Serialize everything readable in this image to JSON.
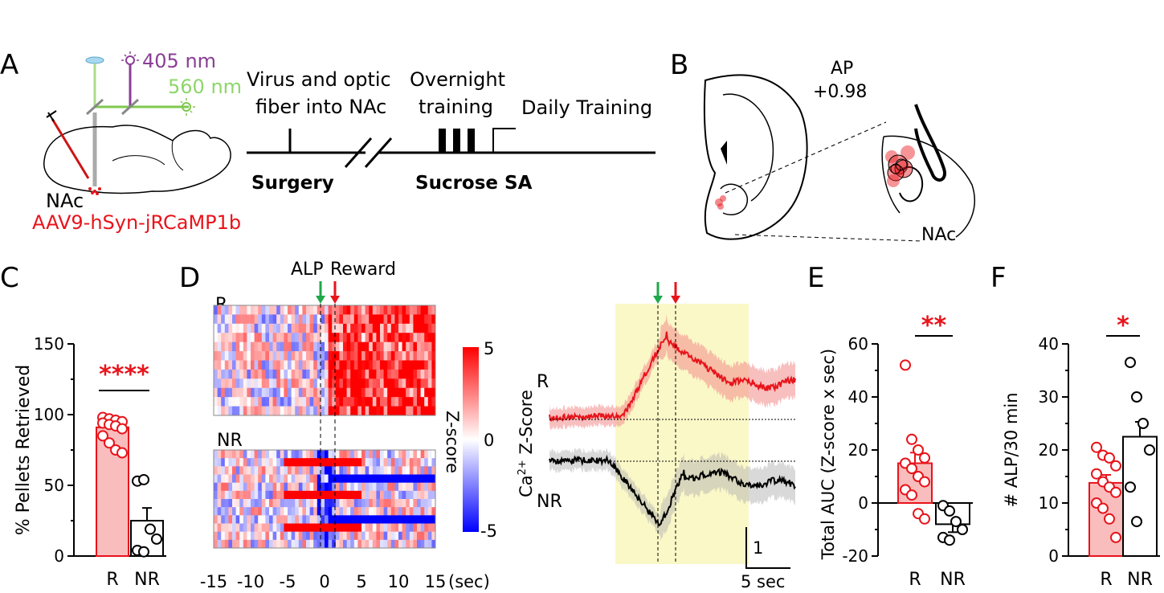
{
  "colors": {
    "red": "#e8141b",
    "green": "#1fa84a",
    "purple": "#8b3e96",
    "light_green": "#8dd66a",
    "pink_fill": "#f9bdbd",
    "yellow_band": "#fbf8c8"
  },
  "panel_labels": {
    "a": "A",
    "b": "B",
    "c": "C",
    "d": "D",
    "e": "E",
    "f": "F"
  },
  "panel_a": {
    "wavelength_1": "405 nm",
    "wavelength_2": "560 nm",
    "region": "NAc",
    "virus": "AAV9-hSyn-jRCaMP1b",
    "timeline": {
      "step1_line1": "Virus and optic",
      "step1_line2": "fiber into NAc",
      "step2_line1": "Overnight",
      "step2_line2": "training",
      "step3": "Daily Training",
      "surgery": "Surgery",
      "sucrose": "Sucrose SA"
    }
  },
  "panel_b": {
    "ap_label": "AP",
    "ap_value": "+0.98",
    "region": "NAc"
  },
  "chart_data": [
    {
      "id": "C",
      "type": "bar",
      "ylabel": "% Pellets Retrieved",
      "categories": [
        "R",
        "NR"
      ],
      "values": [
        91,
        25
      ],
      "sem": [
        3,
        9
      ],
      "ylim": [
        0,
        150
      ],
      "yticks": [
        "0",
        "50",
        "100",
        "150"
      ],
      "significance": "****",
      "points": {
        "R": [
          98,
          97,
          96,
          95,
          94,
          93,
          92,
          90,
          85,
          80,
          75,
          73
        ],
        "NR": [
          53,
          54,
          19,
          12,
          4,
          3
        ]
      }
    },
    {
      "id": "D-heatmap",
      "type": "heatmap",
      "group_labels": [
        "R",
        "NR"
      ],
      "event_labels": [
        "ALP",
        "Reward"
      ],
      "x": [
        -15,
        -10,
        -5,
        0,
        5,
        10,
        15
      ],
      "xticks": [
        "-15",
        "-10",
        "-5",
        "0",
        "5",
        "10",
        "15"
      ],
      "xunit": "(sec)",
      "colorbar_label": "Z-score",
      "colorbar_ticks": [
        "5",
        "0",
        "-5"
      ],
      "clim": [
        -5,
        5
      ]
    },
    {
      "id": "D-trace",
      "type": "line",
      "ylabel_prefix": "Ca",
      "ylabel_sup": "2+",
      "ylabel_suffix": " Z-Score",
      "series": [
        {
          "name": "R"
        },
        {
          "name": "NR"
        }
      ],
      "scale_y": "1",
      "scale_x": "5 sec"
    },
    {
      "id": "E",
      "type": "bar",
      "ylabel": "Total AUC (Z-score x sec)",
      "categories": [
        "R",
        "NR"
      ],
      "values": [
        15,
        -8
      ],
      "sem": [
        4,
        3
      ],
      "ylim": [
        -20,
        60
      ],
      "yticks": [
        "-20",
        "0",
        "20",
        "40",
        "60"
      ],
      "significance": "**",
      "points": {
        "R": [
          52,
          24,
          20,
          17,
          15,
          13,
          10,
          8,
          5,
          3,
          -4,
          -6
        ],
        "NR": [
          -1,
          -3,
          -7,
          -10,
          -13,
          -14
        ]
      }
    },
    {
      "id": "F",
      "type": "bar",
      "ylabel": "# ALP/30 min",
      "categories": [
        "R",
        "NR"
      ],
      "values": [
        13.8,
        22.5
      ],
      "sem": [
        1.5,
        2.8
      ],
      "ylim": [
        0,
        40
      ],
      "yticks": [
        "0",
        "10",
        "20",
        "30",
        "40"
      ],
      "significance": "*",
      "points": {
        "R": [
          20.5,
          19,
          18.5,
          17,
          15.5,
          14,
          13,
          12,
          10,
          9,
          7,
          3.5
        ],
        "NR": [
          36.5,
          30,
          25,
          20,
          13,
          6.5
        ]
      }
    }
  ]
}
